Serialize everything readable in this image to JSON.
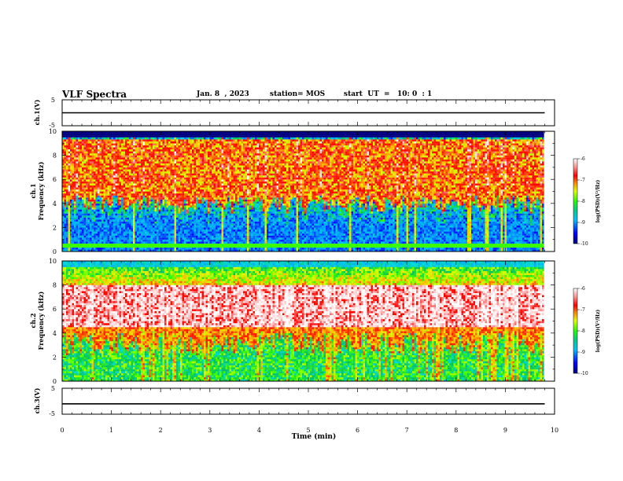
{
  "header": {
    "title": "VLF Spectra",
    "date": "Jan. 8  , 2023",
    "station": "station= MOS",
    "start": "start  UT  =   10: 0  : 1"
  },
  "chart_data": [
    {
      "type": "line",
      "panel": "ch1-voltage",
      "ylabel": "ch.1(V)",
      "ylim": [
        -5,
        5
      ],
      "yticks": [
        "5",
        "-5"
      ],
      "xlim": [
        0,
        10
      ],
      "x": [
        0,
        9.8
      ],
      "values": [
        0,
        0
      ]
    },
    {
      "type": "heatmap",
      "panel": "ch1-spectrogram",
      "ylabel": "ch.1\nFrequency (kHz)",
      "ylim": [
        0,
        10
      ],
      "yticks": [
        "0",
        "2",
        "4",
        "6",
        "8",
        "10"
      ],
      "xlim": [
        0,
        10
      ],
      "data_end_min": 9.8,
      "lower_band_kHz": [
        4.0,
        9.4
      ],
      "lower_band_level": -7.2,
      "background_level": -9.6,
      "colorbar": {
        "label": "log(PSD)(V²/Hz)",
        "ticks": [
          "-6",
          "-7",
          "-8",
          "-9",
          "-10"
        ],
        "range": [
          -10,
          -6
        ]
      }
    },
    {
      "type": "heatmap",
      "panel": "ch2-spectrogram",
      "ylabel": "ch.2\nFrequency (kHz)",
      "ylim": [
        0,
        10
      ],
      "yticks": [
        "0",
        "2",
        "4",
        "6",
        "8",
        "10"
      ],
      "xlim": [
        0,
        10
      ],
      "data_end_min": 9.8,
      "core_band_kHz": [
        4.5,
        8.0
      ],
      "core_level": -6.4,
      "background_level": -8.6,
      "colorbar": {
        "label": "log(PSD)(V²/Hz)",
        "ticks": [
          "-6",
          "-7",
          "-8",
          "-9",
          "-10"
        ],
        "range": [
          -10,
          -6
        ]
      }
    },
    {
      "type": "line",
      "panel": "ch3-voltage",
      "ylabel": "ch.3(V)",
      "ylim": [
        -5,
        5
      ],
      "yticks": [
        "5",
        "-5"
      ],
      "xlim": [
        0,
        10
      ],
      "x": [
        0,
        9.8
      ],
      "values": [
        -1,
        -1
      ]
    }
  ],
  "xaxis": {
    "label": "Time (min)",
    "ticks": [
      "0",
      "1",
      "2",
      "3",
      "4",
      "5",
      "6",
      "7",
      "8",
      "9",
      "10"
    ]
  },
  "colors": {
    "colormap": [
      "#000080",
      "#0000ff",
      "#00a0ff",
      "#00e0e0",
      "#00c060",
      "#40ff00",
      "#e0ff00",
      "#ffc000",
      "#ff3000",
      "#ff0000",
      "#ffd0d0",
      "#ffffff"
    ]
  }
}
